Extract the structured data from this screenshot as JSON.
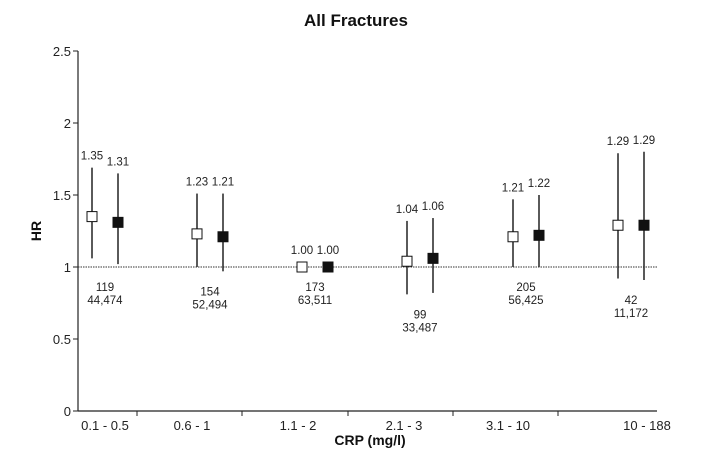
{
  "chart_data": {
    "type": "scatter",
    "subtype": "forest-plot-with-error-bars",
    "title": "All Fractures",
    "xlabel": "CRP (mg/l)",
    "ylabel": "HR",
    "ylim": [
      0,
      2.5
    ],
    "yticks": [
      "0",
      "0.5",
      "1",
      "1.5",
      "2",
      "2.5"
    ],
    "reference_line": 1,
    "grid": false,
    "categories": [
      "0.1 - 0.5",
      "0.6 - 1",
      "1.1 - 2",
      "2.1 - 3",
      "3.1 - 10",
      "10 - 188"
    ],
    "series": [
      {
        "marker": "open-square",
        "values": [
          1.35,
          1.23,
          1.0,
          1.04,
          1.21,
          1.29
        ],
        "labels": [
          "1.35",
          "1.23",
          "1.00",
          "1.04",
          "1.21",
          "1.29"
        ],
        "ci_lower": [
          1.06,
          1.0,
          null,
          0.81,
          1.0,
          0.92
        ],
        "ci_upper": [
          1.69,
          1.51,
          null,
          1.32,
          1.47,
          1.79
        ]
      },
      {
        "marker": "filled-square",
        "values": [
          1.31,
          1.21,
          1.0,
          1.06,
          1.22,
          1.29
        ],
        "labels": [
          "1.31",
          "1.21",
          "1.00",
          "1.06",
          "1.22",
          "1.29"
        ],
        "ci_lower": [
          1.02,
          0.97,
          null,
          0.82,
          1.0,
          0.91
        ],
        "ci_upper": [
          1.65,
          1.51,
          null,
          1.34,
          1.5,
          1.8
        ]
      }
    ],
    "events": [
      "119",
      "154",
      "173",
      "99",
      "205",
      "42"
    ],
    "participants": [
      "44,474",
      "52,494",
      "63,511",
      "33,487",
      "56,425",
      "11,172"
    ],
    "colors": {
      "open_fill": "#ffffff",
      "filled": "#111111",
      "line": "#222222"
    }
  }
}
